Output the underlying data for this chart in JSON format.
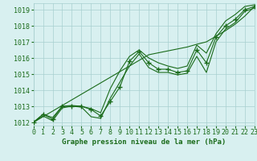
{
  "title": "Graphe pression niveau de la mer (hPa)",
  "x_labels": [
    "0",
    "1",
    "2",
    "3",
    "4",
    "5",
    "6",
    "7",
    "8",
    "9",
    "10",
    "11",
    "12",
    "13",
    "14",
    "15",
    "16",
    "17",
    "18",
    "19",
    "20",
    "21",
    "22",
    "23"
  ],
  "xlim": [
    0,
    23
  ],
  "ylim": [
    1011.8,
    1019.4
  ],
  "yticks": [
    1012,
    1013,
    1014,
    1015,
    1016,
    1017,
    1018,
    1019
  ],
  "line_main": [
    1012.0,
    1012.5,
    1012.2,
    1013.0,
    1013.0,
    1013.0,
    1012.8,
    1012.4,
    1013.3,
    1014.2,
    1015.8,
    1016.4,
    1015.7,
    1015.3,
    1015.3,
    1015.1,
    1015.2,
    1016.5,
    1015.7,
    1017.3,
    1018.0,
    1018.4,
    1019.0,
    1019.2
  ],
  "line_upper": [
    1012.0,
    1012.5,
    1012.3,
    1013.0,
    1013.05,
    1013.0,
    1012.85,
    1012.6,
    1014.1,
    1015.2,
    1016.1,
    1016.5,
    1016.0,
    1015.7,
    1015.5,
    1015.35,
    1015.5,
    1016.8,
    1016.3,
    1017.5,
    1018.3,
    1018.7,
    1019.2,
    1019.3
  ],
  "line_lower": [
    1012.0,
    1012.4,
    1012.1,
    1012.9,
    1013.0,
    1012.95,
    1012.35,
    1012.25,
    1013.5,
    1014.5,
    1015.5,
    1016.25,
    1015.4,
    1015.1,
    1015.1,
    1014.95,
    1015.05,
    1016.1,
    1015.1,
    1017.0,
    1017.8,
    1018.2,
    1018.9,
    1019.1
  ],
  "line_trend": [
    1012.0,
    1012.35,
    1012.7,
    1013.05,
    1013.4,
    1013.75,
    1014.1,
    1014.45,
    1014.8,
    1015.15,
    1015.5,
    1015.85,
    1016.2,
    1016.32,
    1016.44,
    1016.56,
    1016.68,
    1016.85,
    1017.0,
    1017.35,
    1017.7,
    1018.1,
    1018.6,
    1019.2
  ],
  "line_color": "#1a6b1a",
  "bg_color": "#d8f0f0",
  "grid_color": "#a8d0d0",
  "tick_color": "#1a6b1a",
  "label_color": "#1a6b1a",
  "marker": "+",
  "marker_size": 4,
  "line_width": 0.8,
  "font_size": 6.5
}
